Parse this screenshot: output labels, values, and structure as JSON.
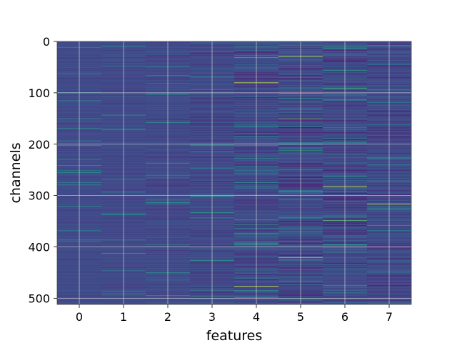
{
  "chart_data": {
    "type": "heatmap",
    "title": "",
    "xlabel": "features",
    "ylabel": "channels",
    "x_categories": [
      "0",
      "1",
      "2",
      "3",
      "4",
      "5",
      "6",
      "7"
    ],
    "x_ticks": [
      "0",
      "1",
      "2",
      "3",
      "4",
      "5",
      "6",
      "7"
    ],
    "y_ticks": [
      "0",
      "100",
      "200",
      "300",
      "400",
      "500"
    ],
    "ylim": [
      512,
      0
    ],
    "rows": 512,
    "colormap": "viridis",
    "grid": true,
    "column_variability": [
      0.035,
      0.045,
      0.06,
      0.09,
      0.13,
      0.16,
      0.14,
      0.12
    ],
    "highlighted_rows": [
      {
        "feature": "4",
        "row": 80
      },
      {
        "feature": "4",
        "row": 476
      },
      {
        "feature": "5",
        "row": 28
      },
      {
        "feature": "5",
        "row": 100
      },
      {
        "feature": "5",
        "row": 420
      },
      {
        "feature": "6",
        "row": 282
      },
      {
        "feature": "7",
        "row": 316
      }
    ]
  }
}
